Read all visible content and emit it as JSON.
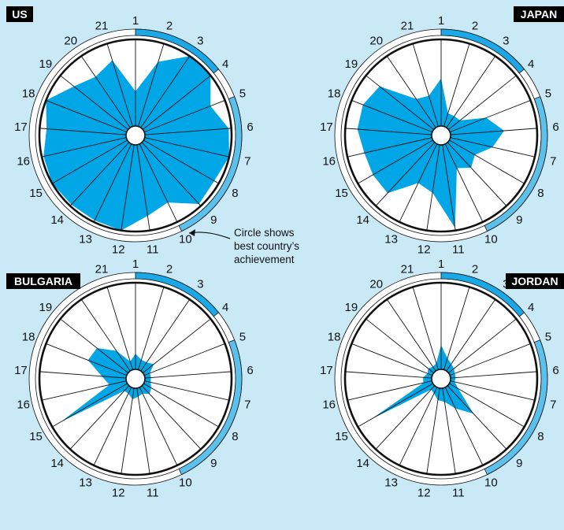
{
  "colors": {
    "background": "#c9e9f7",
    "fill": "#00a6e6",
    "band_light": "#5bc0ec",
    "band_dark": "#1aa9e6",
    "ring": "#ffffff",
    "line": "#111111",
    "label_bg": "#000000"
  },
  "annotation": {
    "line1": "Circle shows",
    "line2": "best country’s",
    "line3": "achievement"
  },
  "chart_data": {
    "type": "radar",
    "categories": [
      "1",
      "2",
      "3",
      "4",
      "5",
      "6",
      "7",
      "8",
      "9",
      "10",
      "11",
      "12",
      "13",
      "14",
      "15",
      "16",
      "17",
      "18",
      "19",
      "20",
      "21"
    ],
    "range": [
      0,
      1
    ],
    "scale_note": "values are fractions of best country's achievement (outer circle = 1)",
    "outer_band": {
      "dark_spokes": [
        1,
        2,
        3,
        4
      ],
      "light_spokes": [
        5,
        6,
        7,
        8,
        9,
        10
      ]
    },
    "panels": [
      {
        "label": "US",
        "label_corner": "left",
        "values": [
          0.4,
          0.78,
          1.0,
          1.0,
          0.82,
          0.97,
          1.0,
          0.94,
          0.97,
          0.75,
          0.83,
          1.0,
          0.98,
          0.98,
          1.0,
          0.98,
          0.92,
          1.0,
          0.8,
          0.71,
          0.8
        ]
      },
      {
        "label": "JAPAN",
        "label_corner": "right",
        "values": [
          0.55,
          0.16,
          0.16,
          0.17,
          0.45,
          0.62,
          0.5,
          0.34,
          0.4,
          0.31,
          0.97,
          0.56,
          0.5,
          0.8,
          0.8,
          0.8,
          0.86,
          0.86,
          0.8,
          0.4,
          0.37
        ]
      },
      {
        "label": "BULGARIA",
        "label_corner": "left",
        "values": [
          0.18,
          0.12,
          0.12,
          0.16,
          0.07,
          0.07,
          0.07,
          0.1,
          0.13,
          0.08,
          0.1,
          0.13,
          0.08,
          0.08,
          0.88,
          0.2,
          0.28,
          0.48,
          0.46,
          0.28,
          0.1
        ]
      },
      {
        "label": "JORDAN",
        "label_corner": "right",
        "values": [
          0.28,
          0.14,
          0.1,
          0.08,
          0.06,
          0.06,
          0.05,
          0.12,
          0.44,
          0.27,
          0.16,
          0.14,
          0.08,
          0.06,
          0.82,
          0.1,
          0.1,
          0.06,
          0.08,
          0.06,
          0.08
        ]
      }
    ]
  }
}
